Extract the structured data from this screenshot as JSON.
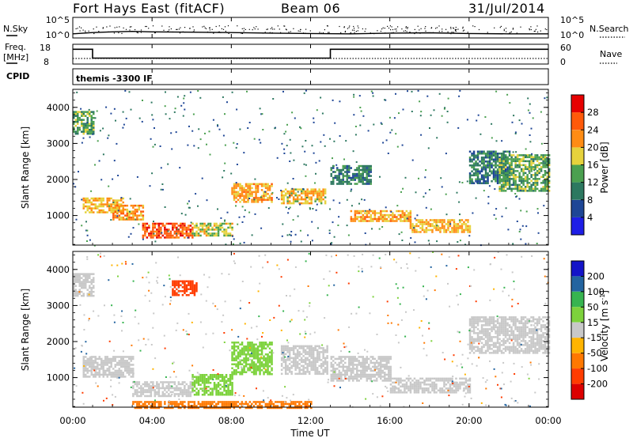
{
  "header": {
    "title": "Fort Hays East (fitACF)",
    "beam": "Beam 06",
    "date": "31/Jul/2014"
  },
  "top_panel": {
    "left_label": "N.Sky",
    "right_label": "N.Search",
    "left_ticks": [
      "10^5",
      "10^0"
    ],
    "right_ticks": [
      "10^5",
      "10^0"
    ]
  },
  "freq_panel": {
    "left_label_line1": "Freq.",
    "left_label_line2": "[MHz]",
    "right_label": "Nave",
    "left_ticks": [
      "18",
      "8"
    ],
    "right_ticks": [
      "60",
      "0"
    ]
  },
  "cpid": {
    "label": "CPID",
    "program": "themis -3300 IF"
  },
  "x_axis": {
    "label": "Time UT",
    "ticks": [
      "00:00",
      "04:00",
      "08:00",
      "12:00",
      "16:00",
      "20:00",
      "00:00"
    ]
  },
  "power_colorbar": {
    "label": "Power [dB]",
    "ticks": [
      "4",
      "8",
      "12",
      "16",
      "20",
      "24",
      "28"
    ],
    "colors": [
      "#1e1ee6",
      "#1e4696",
      "#2d7860",
      "#4ba050",
      "#e6d23c",
      "#ff8c14",
      "#ff5a0a",
      "#e60000"
    ]
  },
  "velocity_colorbar": {
    "label_main": "Velocity [m s",
    "label_sup": "-1",
    "label_end": "]",
    "ticks": [
      "200",
      "100",
      "50",
      "15",
      "-15",
      "-50",
      "-100",
      "-200"
    ],
    "colors": [
      "#1414c8",
      "#2364a0",
      "#37b450",
      "#7dd23c",
      "#c8c8c8",
      "#ffb400",
      "#ff7800",
      "#ff3c00",
      "#dc0000"
    ]
  },
  "chart_data": [
    {
      "type": "line",
      "title": "",
      "series": [
        {
          "name": "N.Sky",
          "x_hours": [
            0,
            1,
            2,
            3,
            4,
            6,
            8,
            10,
            12,
            14,
            16,
            18,
            20,
            22,
            24
          ],
          "values": [
            10,
            20,
            30,
            40,
            30,
            25,
            20,
            15,
            12,
            10,
            15,
            18,
            12,
            10,
            10
          ]
        }
      ],
      "ylabel": "N.Sky",
      "scale": "log",
      "ylim": [
        1,
        100000
      ]
    },
    {
      "type": "line",
      "series": [
        {
          "name": "Freq.",
          "x_hours": [
            0,
            0.08,
            1.0,
            1.0,
            13.0,
            13.0,
            24
          ],
          "values": [
            15.5,
            15.5,
            15.5,
            11.0,
            11.0,
            15.5,
            15.5
          ]
        },
        {
          "name": "Nave",
          "x_hours": [
            0,
            24
          ],
          "values": [
            17,
            17
          ]
        }
      ],
      "ylabel": "Freq. [MHz]",
      "ylim": [
        8,
        18
      ],
      "y2label": "Nave",
      "y2lim": [
        0,
        60
      ]
    },
    {
      "type": "heatmap",
      "title": "",
      "xlabel": "Time UT",
      "ylabel": "Slant Range [km]",
      "xlim": [
        0,
        24
      ],
      "ylim": [
        180,
        4500
      ],
      "colorbar": {
        "label": "Power [dB]",
        "range": [
          0,
          30
        ]
      },
      "regions": [
        {
          "t": [
            0.0,
            1.0
          ],
          "r": [
            3250,
            3900
          ],
          "v": 13
        },
        {
          "t": [
            0.5,
            2.5
          ],
          "r": [
            1100,
            1500
          ],
          "v": 20
        },
        {
          "t": [
            2.0,
            3.5
          ],
          "r": [
            900,
            1300
          ],
          "v": 22
        },
        {
          "t": [
            3.5,
            6.0
          ],
          "r": [
            400,
            800
          ],
          "v": 26
        },
        {
          "t": [
            6.0,
            8.0
          ],
          "r": [
            450,
            800
          ],
          "v": 17
        },
        {
          "t": [
            8.0,
            10.0
          ],
          "r": [
            1400,
            1900
          ],
          "v": 21
        },
        {
          "t": [
            10.5,
            12.7
          ],
          "r": [
            1350,
            1750
          ],
          "v": 19
        },
        {
          "t": [
            13.0,
            15.0
          ],
          "r": [
            1900,
            2400
          ],
          "v": 10
        },
        {
          "t": [
            14.0,
            17.0
          ],
          "r": [
            850,
            1150
          ],
          "v": 21
        },
        {
          "t": [
            17.0,
            20.0
          ],
          "r": [
            550,
            900
          ],
          "v": 20
        },
        {
          "t": [
            20.0,
            22.0
          ],
          "r": [
            1900,
            2800
          ],
          "v": 10
        },
        {
          "t": [
            21.5,
            24.0
          ],
          "r": [
            1700,
            2700
          ],
          "v": 14
        }
      ]
    },
    {
      "type": "heatmap",
      "xlabel": "Time UT",
      "ylabel": "Slant Range [km]",
      "xlim": [
        0,
        24
      ],
      "ylim": [
        180,
        4500
      ],
      "colorbar": {
        "label": "Velocity [m s-1]",
        "range": [
          -200,
          200
        ]
      },
      "regions": [
        {
          "t": [
            0.0,
            1.0
          ],
          "r": [
            3250,
            3900
          ],
          "v": 0
        },
        {
          "t": [
            0.5,
            3.0
          ],
          "r": [
            1000,
            1600
          ],
          "v": 0
        },
        {
          "t": [
            3.0,
            6.0
          ],
          "r": [
            500,
            900
          ],
          "v": 0
        },
        {
          "t": [
            6.0,
            8.0
          ],
          "r": [
            500,
            1100
          ],
          "v": 30
        },
        {
          "t": [
            8.0,
            10.0
          ],
          "r": [
            1100,
            2000
          ],
          "v": 40
        },
        {
          "t": [
            10.5,
            12.8
          ],
          "r": [
            1100,
            1900
          ],
          "v": 0
        },
        {
          "t": [
            13.0,
            16.0
          ],
          "r": [
            900,
            1600
          ],
          "v": 0
        },
        {
          "t": [
            16.0,
            20.0
          ],
          "r": [
            600,
            1000
          ],
          "v": 0
        },
        {
          "t": [
            20.0,
            24.0
          ],
          "r": [
            1700,
            2700
          ],
          "v": 0
        },
        {
          "t": [
            5.0,
            6.2
          ],
          "r": [
            3300,
            3700
          ],
          "v": -180
        },
        {
          "t": [
            3.0,
            12.0
          ],
          "r": [
            180,
            350
          ],
          "v": -60
        }
      ]
    }
  ]
}
